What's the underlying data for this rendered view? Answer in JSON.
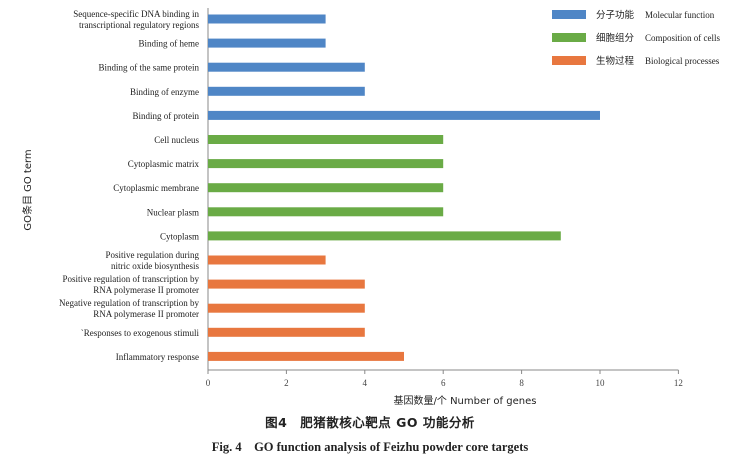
{
  "chart_data": {
    "type": "bar",
    "orientation": "horizontal",
    "xlabel": "基因数量/个  Number of genes",
    "ylabel": "GO条目  GO term",
    "xlim": [
      0,
      12
    ],
    "xticks": [
      0,
      2,
      4,
      6,
      8,
      10,
      12
    ],
    "grid": false,
    "legend_position": "top-right",
    "legend": [
      {
        "label_cn": "分子功能",
        "label_en": "Molecular function",
        "color": "#4f86c6"
      },
      {
        "label_cn": "细胞组分",
        "label_en": "Composition of cells",
        "color": "#6aab46"
      },
      {
        "label_cn": "生物过程",
        "label_en": "Biological processes",
        "color": "#e8773f"
      }
    ],
    "bars": [
      {
        "label": [
          "Sequence-specific DNA binding in",
          "transcriptional regulatory regions"
        ],
        "value": 3,
        "group": 0
      },
      {
        "label": [
          "Binding of heme"
        ],
        "value": 3,
        "group": 0
      },
      {
        "label": [
          "Binding of the same protein"
        ],
        "value": 4,
        "group": 0
      },
      {
        "label": [
          "Binding of enzyme"
        ],
        "value": 4,
        "group": 0
      },
      {
        "label": [
          "Binding of protein"
        ],
        "value": 10,
        "group": 0
      },
      {
        "label": [
          "Cell nucleus"
        ],
        "value": 6,
        "group": 1
      },
      {
        "label": [
          "Cytoplasmic matrix"
        ],
        "value": 6,
        "group": 1
      },
      {
        "label": [
          "Cytoplasmic membrane"
        ],
        "value": 6,
        "group": 1
      },
      {
        "label": [
          "Nuclear plasm"
        ],
        "value": 6,
        "group": 1
      },
      {
        "label": [
          "Cytoplasm"
        ],
        "value": 9,
        "group": 1
      },
      {
        "label": [
          "Positive regulation during",
          "nitric oxide biosynthesis"
        ],
        "value": 3,
        "group": 2
      },
      {
        "label": [
          "Positive regulation of transcription by",
          "RNA polymerase II promoter"
        ],
        "value": 4,
        "group": 2
      },
      {
        "label": [
          "Negative regulation of transcription by",
          "RNA polymerase II promoter"
        ],
        "value": 4,
        "group": 2
      },
      {
        "label": [
          "`Responses to exogenous stimuli"
        ],
        "value": 4,
        "group": 2
      },
      {
        "label": [
          "Inflammatory response"
        ],
        "value": 5,
        "group": 2
      }
    ]
  },
  "caption": {
    "cn": "图4　肥猪散核心靶点 GO 功能分析",
    "en": "Fig. 4　GO function analysis of Feizhu powder core targets"
  }
}
